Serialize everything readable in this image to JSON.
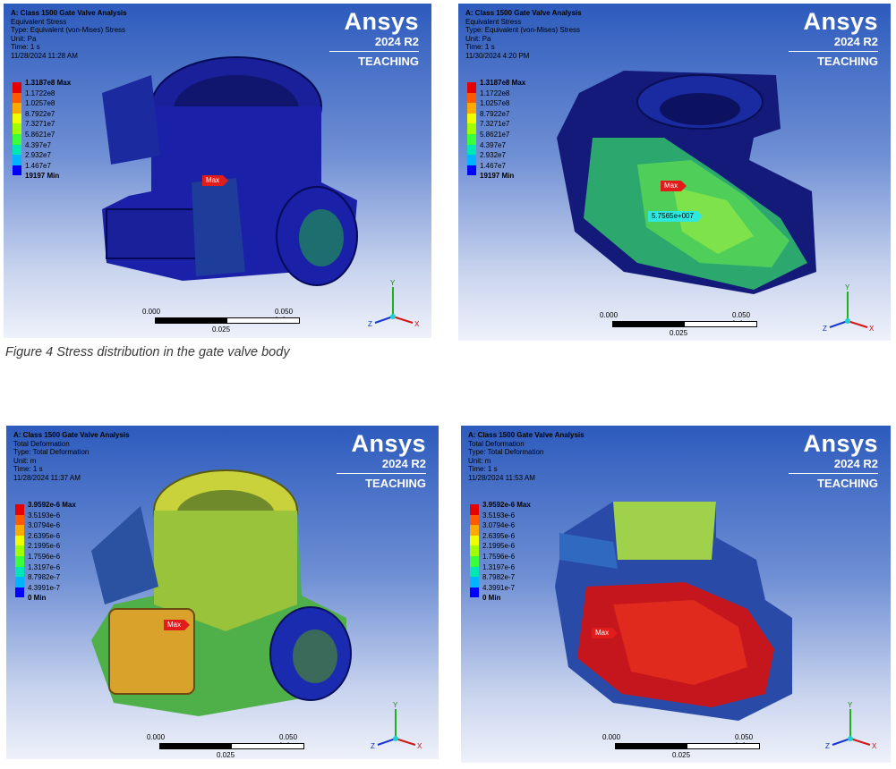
{
  "brand": {
    "name": "Ansys",
    "version": "2024 R2",
    "edition": "TEACHING"
  },
  "caption": "Figure 4 Stress distribution in the gate valve body",
  "panels": [
    {
      "title": "A: Class 1500 Gate Valve Analysis",
      "result": "Equivalent Stress",
      "type": "Type: Equivalent (von-Mises) Stress",
      "unit": "Unit: Pa",
      "time": "Time: 1 s",
      "date": "11/28/2024 11:28 AM",
      "legend": [
        "1.3187e8 Max",
        "1.1722e8",
        "1.0257e8",
        "8.7922e7",
        "7.3271e7",
        "5.8621e7",
        "4.397e7",
        "2.932e7",
        "1.467e7",
        "19197 Min"
      ],
      "max_tag": "Max",
      "scale": {
        "left": "0.000",
        "right": "0.050 (m)",
        "mid": "0.025"
      }
    },
    {
      "title": "A: Class 1500 Gate Valve Analysis",
      "result": "Equivalent Stress",
      "type": "Type: Equivalent (von-Mises) Stress",
      "unit": "Unit: Pa",
      "time": "Time: 1 s",
      "date": "11/30/2024 4:20 PM",
      "legend": [
        "1.3187e8 Max",
        "1.1722e8",
        "1.0257e8",
        "8.7922e7",
        "7.3271e7",
        "5.8621e7",
        "4.397e7",
        "2.932e7",
        "1.467e7",
        "19197 Min"
      ],
      "max_tag": "Max",
      "probe_tag": "5.7565e+007",
      "scale": {
        "left": "0.000",
        "right": "0.050 (m)",
        "mid": "0.025"
      }
    },
    {
      "title": "A: Class 1500 Gate Valve Analysis",
      "result": "Total Deformation",
      "type": "Type: Total Deformation",
      "unit": "Unit: m",
      "time": "Time: 1 s",
      "date": "11/28/2024 11:37 AM",
      "legend": [
        "3.9592e-6 Max",
        "3.5193e-6",
        "3.0794e-6",
        "2.6395e-6",
        "2.1995e-6",
        "1.7596e-6",
        "1.3197e-6",
        "8.7982e-7",
        "4.3991e-7",
        "0 Min"
      ],
      "max_tag": "Max",
      "scale": {
        "left": "0.000",
        "right": "0.050 (m)",
        "mid": "0.025"
      }
    },
    {
      "title": "A: Class 1500 Gate Valve Analysis",
      "result": "Total Deformation",
      "type": "Type: Total Deformation",
      "unit": "Unit: m",
      "time": "Time: 1 s",
      "date": "11/28/2024 11:53 AM",
      "legend": [
        "3.9592e-6 Max",
        "3.5193e-6",
        "3.0794e-6",
        "2.6395e-6",
        "2.1995e-6",
        "1.7596e-6",
        "1.3197e-6",
        "8.7982e-7",
        "4.3991e-7",
        "0 Min"
      ],
      "max_tag": "Max",
      "scale": {
        "left": "0.000",
        "right": "0.050 (m)",
        "mid": "0.025"
      }
    }
  ],
  "legend_colors": [
    "#e60000",
    "#ff5a00",
    "#ffaa00",
    "#f0ff00",
    "#a0ff00",
    "#3cff3c",
    "#00e6b4",
    "#00b4ff",
    "#0000ff"
  ],
  "triad_labels": {
    "y": "Y",
    "x": "X",
    "z": "Z"
  }
}
